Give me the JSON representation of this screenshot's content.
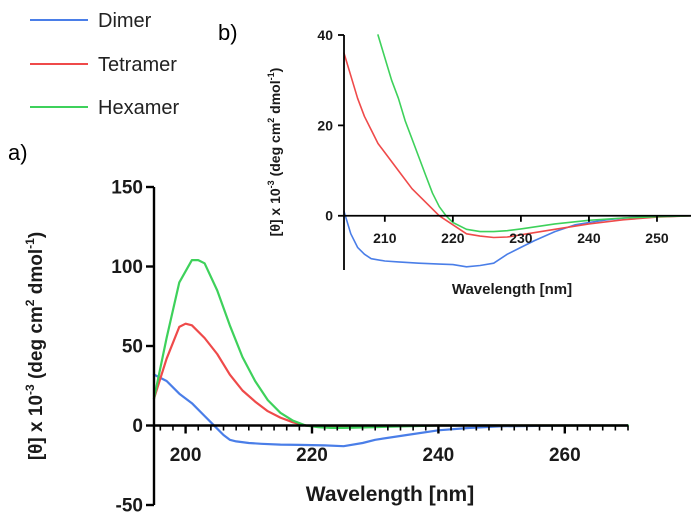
{
  "panel_labels": {
    "a": "a)",
    "b": "b)"
  },
  "legend": [
    {
      "name": "Dimer",
      "color": "#4a7ee8"
    },
    {
      "name": "Tetramer",
      "color": "#ef4a4a"
    },
    {
      "name": "Hexamer",
      "color": "#3ed15b"
    }
  ],
  "chart_data": [
    {
      "id": "main",
      "type": "line",
      "title": "",
      "xlabel": "Wavelength [nm]",
      "ylabel": "[θ] x 10",
      "ylabel_sup": "-3",
      "ylabel_units": " (deg cm",
      "ylabel_sup2": "2",
      "ylabel_units2": " dmol",
      "ylabel_sup3": "-1",
      "ylabel_end": ")",
      "xlim": [
        195,
        270
      ],
      "ylim": [
        -50,
        150
      ],
      "xticks": [
        200,
        220,
        240,
        260
      ],
      "yticks": [
        -50,
        0,
        50,
        100,
        150
      ],
      "grid": false,
      "series": [
        {
          "name": "Dimer",
          "color": "#4a7ee8",
          "x": [
            195,
            197,
            199,
            201,
            203,
            204,
            205,
            206,
            207,
            208,
            210,
            212,
            215,
            218,
            220,
            222,
            225,
            228,
            230,
            235,
            240,
            245,
            250,
            260,
            270
          ],
          "y": [
            32,
            28,
            20,
            14,
            6,
            2,
            -2,
            -6,
            -9,
            -10,
            -11,
            -11.5,
            -12,
            -12.2,
            -12.3,
            -12.5,
            -13,
            -11,
            -9,
            -6,
            -3,
            -1.5,
            -0.5,
            0,
            0
          ]
        },
        {
          "name": "Tetramer",
          "color": "#ef4a4a",
          "x": [
            195,
            197,
            199,
            200,
            201,
            203,
            205,
            207,
            209,
            211,
            213,
            215,
            217,
            219,
            221,
            223,
            225,
            230,
            240,
            250,
            270
          ],
          "y": [
            17,
            42,
            62,
            64,
            63,
            55,
            45,
            32,
            22,
            15,
            9,
            5,
            2,
            0,
            -0.5,
            -0.5,
            -0.5,
            -0.3,
            0,
            0,
            0
          ]
        },
        {
          "name": "Hexamer",
          "color": "#3ed15b",
          "x": [
            195,
            197,
            199,
            201,
            202,
            203,
            205,
            207,
            209,
            211,
            213,
            215,
            217,
            219,
            221,
            223,
            225,
            230,
            240,
            250,
            270
          ],
          "y": [
            17,
            55,
            90,
            104,
            104,
            102,
            85,
            63,
            43,
            28,
            16,
            8,
            3,
            0,
            -1,
            -1.5,
            -1.5,
            -1,
            0,
            0,
            0
          ]
        }
      ]
    },
    {
      "id": "inset",
      "type": "line",
      "title": "",
      "xlabel": "Wavelength [nm]",
      "ylabel": "[θ] x 10",
      "ylabel_sup": "-3",
      "ylabel_units": " (deg cm",
      "ylabel_sup2": "2",
      "ylabel_units2": " dmol",
      "ylabel_sup3": "-1",
      "ylabel_end": ")",
      "xlim": [
        204,
        255
      ],
      "ylim": [
        -12,
        40
      ],
      "xticks": [
        210,
        220,
        230,
        240,
        250
      ],
      "yticks": [
        0,
        20,
        40
      ],
      "grid": false,
      "series": [
        {
          "name": "Dimer",
          "color": "#4a7ee8",
          "x": [
            204,
            205,
            206,
            207,
            208,
            210,
            212,
            215,
            218,
            220,
            222,
            224,
            226,
            228,
            230,
            232,
            235,
            238,
            240,
            243,
            246,
            250,
            255
          ],
          "y": [
            1,
            -4,
            -7,
            -8.5,
            -9.5,
            -10,
            -10.2,
            -10.5,
            -10.7,
            -10.8,
            -11.3,
            -11,
            -10.5,
            -8.5,
            -7,
            -5.5,
            -3.5,
            -2,
            -1.5,
            -0.8,
            -0.4,
            -0.2,
            0
          ]
        },
        {
          "name": "Tetramer",
          "color": "#ef4a4a",
          "x": [
            204,
            205,
            206,
            207,
            208,
            209,
            210,
            212,
            214,
            216,
            218,
            220,
            222,
            224,
            226,
            228,
            230,
            235,
            240,
            245,
            250,
            255
          ],
          "y": [
            36,
            31,
            26,
            22,
            19,
            16,
            14,
            10,
            6,
            3,
            0,
            -2,
            -4,
            -4.5,
            -4.8,
            -4.7,
            -4.2,
            -3,
            -1.8,
            -0.9,
            -0.3,
            0
          ]
        },
        {
          "name": "Hexamer",
          "color": "#3ed15b",
          "x": [
            209,
            210,
            211,
            212,
            213,
            214,
            215,
            216,
            217,
            218,
            219,
            220,
            222,
            224,
            226,
            228,
            230,
            235,
            240,
            245,
            250,
            255
          ],
          "y": [
            40,
            35,
            30,
            26,
            21,
            17,
            13,
            9,
            5,
            2,
            0,
            -1.5,
            -3,
            -3.5,
            -3.5,
            -3.3,
            -2.9,
            -1.8,
            -1,
            -0.5,
            -0.2,
            0
          ]
        }
      ]
    }
  ]
}
